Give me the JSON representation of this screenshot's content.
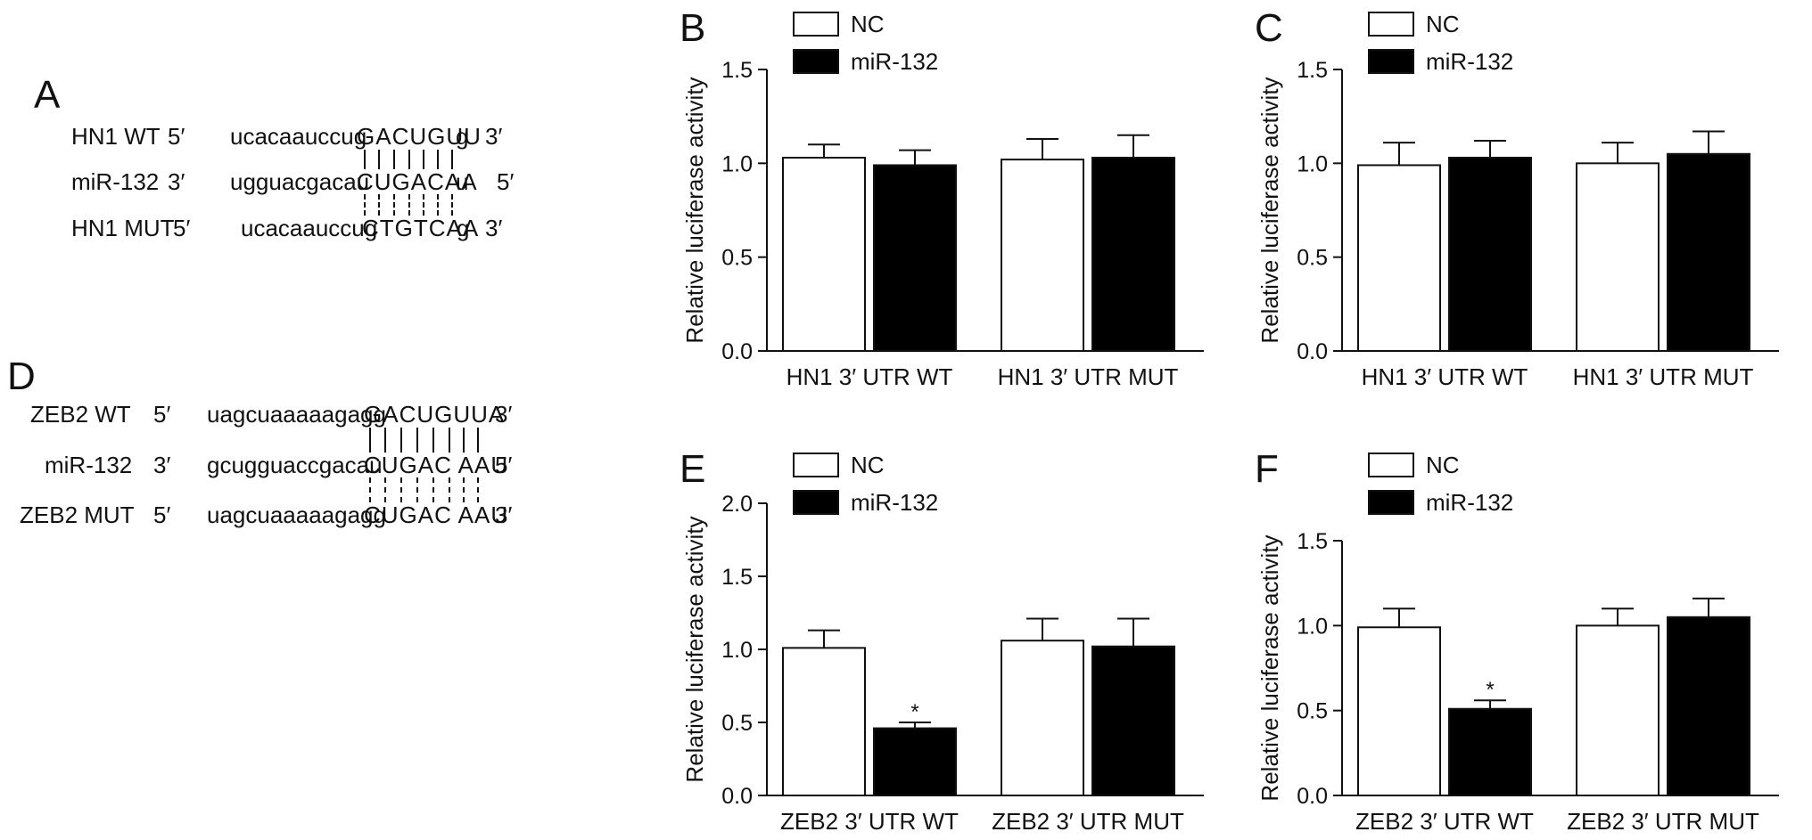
{
  "panels": {
    "A": {
      "letter": "A",
      "rows": [
        {
          "name": "HN1 WT",
          "end5": "5′",
          "lower": "ucacaauccug",
          "upper": "GACUGUU",
          "tail": "g",
          "end3": "3′"
        },
        {
          "name": "miR-132",
          "end5": "3′",
          "lower": "ugguacgacau",
          "upper": "CUGACAA",
          "tail": "u",
          "end3": "5′"
        },
        {
          "name": "HN1 MUT",
          "end5": "5′",
          "lower": "ucacaauccug",
          "upper": "CTGTCAA",
          "tail": "g",
          "end3": "3′"
        }
      ]
    },
    "D": {
      "letter": "D",
      "rows": [
        {
          "name": "ZEB2 WT",
          "end5": "5′",
          "lower": "uagcuaaaaagagg",
          "upper": "GACUGUUA",
          "tail": "",
          "end3": "3′"
        },
        {
          "name": "miR-132",
          "end5": "3′",
          "lower": "gcugguaccgacau",
          "upper": "CUGAC AAU",
          "tail": "",
          "end3": "5′"
        },
        {
          "name": "ZEB2 MUT",
          "end5": "5′",
          "lower": "uagcuaaaaagagg",
          "upper": "CUGAC AAU",
          "tail": "",
          "end3": "3′"
        }
      ]
    }
  },
  "chart_data": [
    {
      "panel": "B",
      "type": "bar",
      "ylabel": "Relative luciferase activity",
      "categories": [
        "HN1 3′ UTR WT",
        "HN1 3′ UTR MUT"
      ],
      "series": [
        {
          "name": "NC",
          "color": "#ffffff",
          "values": [
            1.03,
            1.02
          ],
          "errors": [
            0.07,
            0.11
          ]
        },
        {
          "name": "miR-132",
          "color": "#000000",
          "values": [
            0.99,
            1.03
          ],
          "errors": [
            0.08,
            0.12
          ]
        }
      ],
      "ylim": [
        0,
        1.5
      ],
      "yticks": [
        "0.0",
        "0.5",
        "1.0",
        "1.5"
      ],
      "significance": [
        "",
        ""
      ],
      "legend": "top-left"
    },
    {
      "panel": "C",
      "type": "bar",
      "ylabel": "Relative luciferase activity",
      "categories": [
        "HN1 3′ UTR WT",
        "HN1 3′ UTR MUT"
      ],
      "series": [
        {
          "name": "NC",
          "color": "#ffffff",
          "values": [
            0.99,
            1.0
          ],
          "errors": [
            0.12,
            0.11
          ]
        },
        {
          "name": "miR-132",
          "color": "#000000",
          "values": [
            1.03,
            1.05
          ],
          "errors": [
            0.09,
            0.12
          ]
        }
      ],
      "ylim": [
        0,
        1.5
      ],
      "yticks": [
        "0.0",
        "0.5",
        "1.0",
        "1.5"
      ],
      "significance": [
        "",
        ""
      ],
      "legend": "top-left"
    },
    {
      "panel": "E",
      "type": "bar",
      "ylabel": "Relative luciferase activity",
      "categories": [
        "ZEB2 3′ UTR WT",
        "ZEB2 3′ UTR MUT"
      ],
      "series": [
        {
          "name": "NC",
          "color": "#ffffff",
          "values": [
            1.01,
            1.06
          ],
          "errors": [
            0.12,
            0.15
          ]
        },
        {
          "name": "miR-132",
          "color": "#000000",
          "values": [
            0.46,
            1.02
          ],
          "errors": [
            0.04,
            0.19
          ]
        }
      ],
      "ylim": [
        0,
        2.0
      ],
      "yticks": [
        "0.0",
        "0.5",
        "1.0",
        "1.5",
        "2.0"
      ],
      "significance": [
        "*",
        ""
      ],
      "legend": "top-left"
    },
    {
      "panel": "F",
      "type": "bar",
      "ylabel": "Relative luciferase activity",
      "categories": [
        "ZEB2 3′ UTR WT",
        "ZEB2 3′ UTR MUT"
      ],
      "series": [
        {
          "name": "NC",
          "color": "#ffffff",
          "values": [
            0.99,
            1.0
          ],
          "errors": [
            0.11,
            0.1
          ]
        },
        {
          "name": "miR-132",
          "color": "#000000",
          "values": [
            0.51,
            1.05
          ],
          "errors": [
            0.05,
            0.11
          ]
        }
      ],
      "ylim": [
        0,
        1.5
      ],
      "yticks": [
        "0.0",
        "0.5",
        "1.0",
        "1.5"
      ],
      "significance": [
        "*",
        ""
      ],
      "legend": "top-left"
    }
  ]
}
